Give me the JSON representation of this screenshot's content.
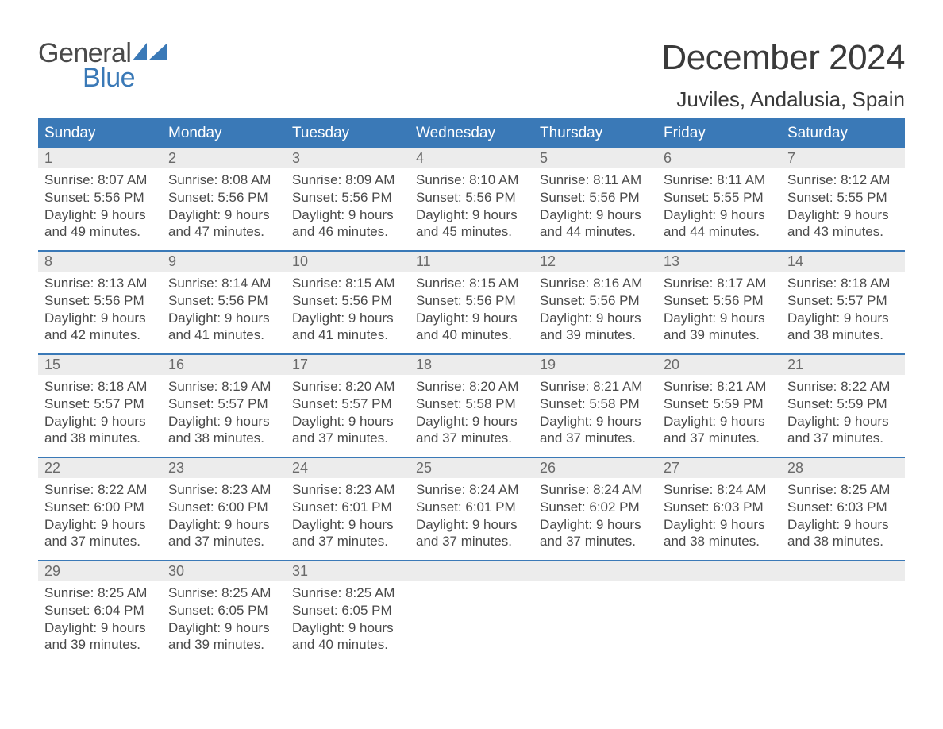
{
  "logo": {
    "word1": "General",
    "word2": "Blue"
  },
  "title": "December 2024",
  "location": "Juviles, Andalusia, Spain",
  "colors": {
    "header_bg": "#3a79b7",
    "header_text": "#ffffff",
    "daynum_bg": "#ececec",
    "daynum_text": "#6a6a6a",
    "body_text": "#4a4a4a",
    "week_border": "#3a79b7",
    "logo_gray": "#4a4a4a",
    "logo_blue": "#3a79b7"
  },
  "weekdays": [
    "Sunday",
    "Monday",
    "Tuesday",
    "Wednesday",
    "Thursday",
    "Friday",
    "Saturday"
  ],
  "weeks": [
    [
      {
        "n": "1",
        "sr": "8:07 AM",
        "ss": "5:56 PM",
        "dl1": "Daylight: 9 hours",
        "dl2": "and 49 minutes."
      },
      {
        "n": "2",
        "sr": "8:08 AM",
        "ss": "5:56 PM",
        "dl1": "Daylight: 9 hours",
        "dl2": "and 47 minutes."
      },
      {
        "n": "3",
        "sr": "8:09 AM",
        "ss": "5:56 PM",
        "dl1": "Daylight: 9 hours",
        "dl2": "and 46 minutes."
      },
      {
        "n": "4",
        "sr": "8:10 AM",
        "ss": "5:56 PM",
        "dl1": "Daylight: 9 hours",
        "dl2": "and 45 minutes."
      },
      {
        "n": "5",
        "sr": "8:11 AM",
        "ss": "5:56 PM",
        "dl1": "Daylight: 9 hours",
        "dl2": "and 44 minutes."
      },
      {
        "n": "6",
        "sr": "8:11 AM",
        "ss": "5:55 PM",
        "dl1": "Daylight: 9 hours",
        "dl2": "and 44 minutes."
      },
      {
        "n": "7",
        "sr": "8:12 AM",
        "ss": "5:55 PM",
        "dl1": "Daylight: 9 hours",
        "dl2": "and 43 minutes."
      }
    ],
    [
      {
        "n": "8",
        "sr": "8:13 AM",
        "ss": "5:56 PM",
        "dl1": "Daylight: 9 hours",
        "dl2": "and 42 minutes."
      },
      {
        "n": "9",
        "sr": "8:14 AM",
        "ss": "5:56 PM",
        "dl1": "Daylight: 9 hours",
        "dl2": "and 41 minutes."
      },
      {
        "n": "10",
        "sr": "8:15 AM",
        "ss": "5:56 PM",
        "dl1": "Daylight: 9 hours",
        "dl2": "and 41 minutes."
      },
      {
        "n": "11",
        "sr": "8:15 AM",
        "ss": "5:56 PM",
        "dl1": "Daylight: 9 hours",
        "dl2": "and 40 minutes."
      },
      {
        "n": "12",
        "sr": "8:16 AM",
        "ss": "5:56 PM",
        "dl1": "Daylight: 9 hours",
        "dl2": "and 39 minutes."
      },
      {
        "n": "13",
        "sr": "8:17 AM",
        "ss": "5:56 PM",
        "dl1": "Daylight: 9 hours",
        "dl2": "and 39 minutes."
      },
      {
        "n": "14",
        "sr": "8:18 AM",
        "ss": "5:57 PM",
        "dl1": "Daylight: 9 hours",
        "dl2": "and 38 minutes."
      }
    ],
    [
      {
        "n": "15",
        "sr": "8:18 AM",
        "ss": "5:57 PM",
        "dl1": "Daylight: 9 hours",
        "dl2": "and 38 minutes."
      },
      {
        "n": "16",
        "sr": "8:19 AM",
        "ss": "5:57 PM",
        "dl1": "Daylight: 9 hours",
        "dl2": "and 38 minutes."
      },
      {
        "n": "17",
        "sr": "8:20 AM",
        "ss": "5:57 PM",
        "dl1": "Daylight: 9 hours",
        "dl2": "and 37 minutes."
      },
      {
        "n": "18",
        "sr": "8:20 AM",
        "ss": "5:58 PM",
        "dl1": "Daylight: 9 hours",
        "dl2": "and 37 minutes."
      },
      {
        "n": "19",
        "sr": "8:21 AM",
        "ss": "5:58 PM",
        "dl1": "Daylight: 9 hours",
        "dl2": "and 37 minutes."
      },
      {
        "n": "20",
        "sr": "8:21 AM",
        "ss": "5:59 PM",
        "dl1": "Daylight: 9 hours",
        "dl2": "and 37 minutes."
      },
      {
        "n": "21",
        "sr": "8:22 AM",
        "ss": "5:59 PM",
        "dl1": "Daylight: 9 hours",
        "dl2": "and 37 minutes."
      }
    ],
    [
      {
        "n": "22",
        "sr": "8:22 AM",
        "ss": "6:00 PM",
        "dl1": "Daylight: 9 hours",
        "dl2": "and 37 minutes."
      },
      {
        "n": "23",
        "sr": "8:23 AM",
        "ss": "6:00 PM",
        "dl1": "Daylight: 9 hours",
        "dl2": "and 37 minutes."
      },
      {
        "n": "24",
        "sr": "8:23 AM",
        "ss": "6:01 PM",
        "dl1": "Daylight: 9 hours",
        "dl2": "and 37 minutes."
      },
      {
        "n": "25",
        "sr": "8:24 AM",
        "ss": "6:01 PM",
        "dl1": "Daylight: 9 hours",
        "dl2": "and 37 minutes."
      },
      {
        "n": "26",
        "sr": "8:24 AM",
        "ss": "6:02 PM",
        "dl1": "Daylight: 9 hours",
        "dl2": "and 37 minutes."
      },
      {
        "n": "27",
        "sr": "8:24 AM",
        "ss": "6:03 PM",
        "dl1": "Daylight: 9 hours",
        "dl2": "and 38 minutes."
      },
      {
        "n": "28",
        "sr": "8:25 AM",
        "ss": "6:03 PM",
        "dl1": "Daylight: 9 hours",
        "dl2": "and 38 minutes."
      }
    ],
    [
      {
        "n": "29",
        "sr": "8:25 AM",
        "ss": "6:04 PM",
        "dl1": "Daylight: 9 hours",
        "dl2": "and 39 minutes."
      },
      {
        "n": "30",
        "sr": "8:25 AM",
        "ss": "6:05 PM",
        "dl1": "Daylight: 9 hours",
        "dl2": "and 39 minutes."
      },
      {
        "n": "31",
        "sr": "8:25 AM",
        "ss": "6:05 PM",
        "dl1": "Daylight: 9 hours",
        "dl2": "and 40 minutes."
      },
      null,
      null,
      null,
      null
    ]
  ],
  "labels": {
    "sunrise_prefix": "Sunrise: ",
    "sunset_prefix": "Sunset: "
  }
}
